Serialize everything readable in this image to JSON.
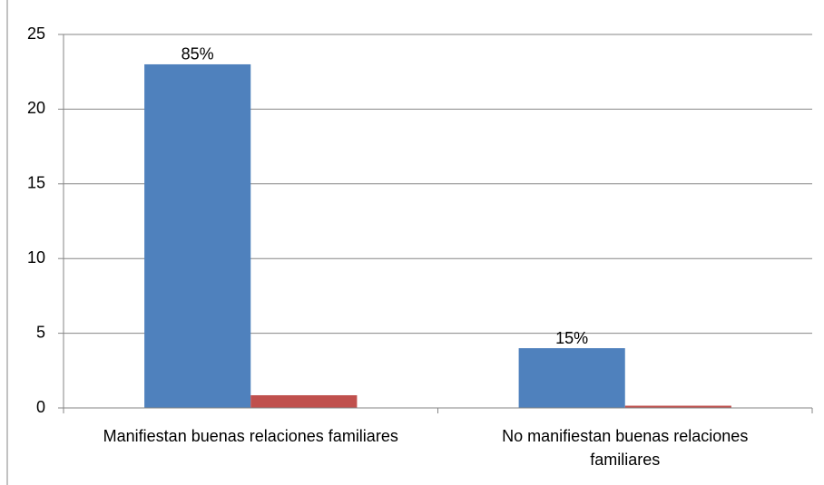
{
  "chart_data": {
    "type": "bar",
    "categories": [
      "Manifiestan buenas relaciones familiares",
      "No manifiestan buenas relaciones familiares"
    ],
    "series": [
      {
        "color": "#4f81bd",
        "values": [
          23,
          4
        ]
      },
      {
        "color": "#c0504d",
        "values": [
          0.85,
          0.15
        ],
        "value_labels": [
          "85%",
          "15%"
        ]
      }
    ],
    "ylim": [
      0,
      25
    ],
    "yticks": [
      0,
      5,
      10,
      15,
      20,
      25
    ],
    "grid": true
  }
}
